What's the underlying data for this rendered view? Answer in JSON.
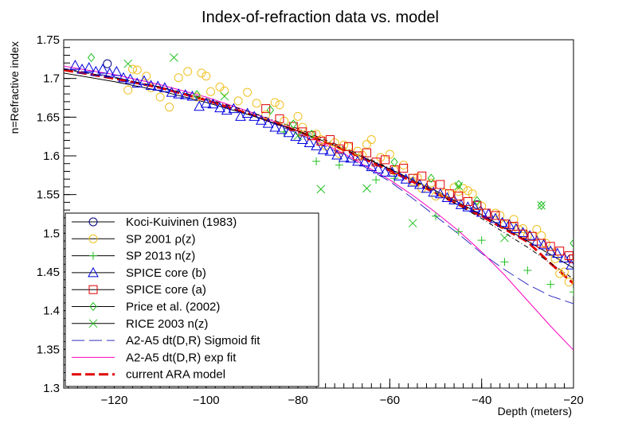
{
  "chart_data": {
    "type": "scatter",
    "title": "Index-of-refraction data vs. model",
    "xlabel": "Depth (meters)",
    "ylabel": "n=Refractive index",
    "xlim": [
      -131,
      -20
    ],
    "ylim": [
      1.3,
      1.75
    ],
    "x_ticks": [
      -120,
      -100,
      -80,
      -60,
      -40,
      -20
    ],
    "x_tick_labels": [
      "−120",
      "−100",
      "−80",
      "−60",
      "−40",
      "−20"
    ],
    "y_ticks": [
      1.3,
      1.35,
      1.4,
      1.45,
      1.5,
      1.55,
      1.6,
      1.65,
      1.7,
      1.75
    ],
    "y_tick_labels": [
      "1.3",
      "1.35",
      "1.4",
      "1.45",
      "1.5",
      "1.55",
      "1.6",
      "1.65",
      "1.7",
      "1.75"
    ],
    "legend_position": "bottom-left",
    "series": [
      {
        "name": "Koci-Kuivinen (1983)",
        "kind": "points",
        "marker": "circle",
        "color": "#000080",
        "x": [
          -121.5,
          -41,
          -20.5
        ],
        "y": [
          1.719,
          1.537,
          1.467
        ]
      },
      {
        "name": "SP 2001 ρ(z)",
        "kind": "points",
        "marker": "circle",
        "color": "#f0c020",
        "x": [
          -117,
          -116,
          -115,
          -113,
          -112,
          -110,
          -108,
          -106,
          -104,
          -102,
          -101,
          -100,
          -99,
          -97,
          -96,
          -93,
          -91,
          -89,
          -87,
          -85,
          -84,
          -83,
          -80,
          -79,
          -76,
          -75,
          -74,
          -72,
          -71,
          -70,
          -69,
          -67,
          -66,
          -65,
          -64,
          -62,
          -60,
          -59,
          -57,
          -55,
          -54,
          -53,
          -51,
          -50,
          -48,
          -46,
          -45,
          -44,
          -43,
          -42,
          -40,
          -37,
          -36,
          -35,
          -33,
          -32,
          -31,
          -30,
          -28,
          -27,
          -26,
          -25,
          -24,
          -23,
          -22,
          -21
        ],
        "y": [
          1.685,
          1.712,
          1.711,
          1.703,
          1.688,
          1.676,
          1.663,
          1.701,
          1.709,
          1.676,
          1.707,
          1.703,
          1.683,
          1.689,
          1.684,
          1.671,
          1.682,
          1.668,
          1.653,
          1.669,
          1.666,
          1.645,
          1.651,
          1.637,
          1.628,
          1.621,
          1.613,
          1.617,
          1.603,
          1.614,
          1.612,
          1.606,
          1.601,
          1.615,
          1.621,
          1.598,
          1.602,
          1.581,
          1.588,
          1.567,
          1.572,
          1.558,
          1.565,
          1.548,
          1.552,
          1.559,
          1.554,
          1.558,
          1.555,
          1.551,
          1.535,
          1.526,
          1.523,
          1.511,
          1.518,
          1.505,
          1.506,
          1.497,
          1.505,
          1.497,
          1.487,
          1.476,
          1.467,
          1.448,
          1.45,
          1.437
        ]
      },
      {
        "name": "SP 2013 n(z)",
        "kind": "points",
        "marker": "plus",
        "color": "#20c020",
        "x": [
          -83,
          -76,
          -71,
          -63,
          -59,
          -50,
          -45,
          -40,
          -35,
          -30,
          -25,
          -20
        ],
        "y": [
          1.631,
          1.593,
          1.588,
          1.569,
          1.571,
          1.522,
          1.502,
          1.491,
          1.463,
          1.452,
          1.434,
          1.424
        ]
      },
      {
        "name": "SPICE core (b)",
        "kind": "points",
        "marker": "triangle",
        "color": "#0000e0",
        "x": [
          -128.5,
          -127,
          -125.5,
          -124,
          -122.5,
          -121,
          -119.5,
          -118,
          -116.5,
          -115,
          -113.5,
          -112,
          -110.5,
          -109,
          -107.5,
          -106,
          -104.5,
          -103,
          -101.5,
          -100,
          -98.5,
          -97,
          -95.5,
          -94,
          -92.5,
          -91,
          -89.5,
          -88,
          -86.5,
          -85,
          -83.5,
          -82,
          -80.5,
          -79,
          -77.5,
          -76,
          -74.5,
          -73,
          -71.5,
          -70,
          -68.5,
          -67,
          -65.5,
          -64,
          -62.5,
          -61,
          -59.5,
          -58,
          -56.5,
          -55,
          -53.5,
          -52,
          -50.5,
          -49,
          -47.5,
          -46,
          -44.5,
          -43,
          -41.5,
          -40,
          -38.5,
          -37,
          -35.5,
          -34,
          -32.5,
          -31,
          -29.5,
          -28,
          -26.5,
          -25,
          -23.5,
          -22,
          -20.5
        ],
        "y": [
          1.717,
          1.712,
          1.714,
          1.709,
          1.712,
          1.707,
          1.709,
          1.701,
          1.699,
          1.694,
          1.697,
          1.691,
          1.69,
          1.688,
          1.682,
          1.68,
          1.679,
          1.677,
          1.664,
          1.668,
          1.667,
          1.662,
          1.659,
          1.661,
          1.651,
          1.655,
          1.651,
          1.646,
          1.642,
          1.637,
          1.634,
          1.63,
          1.625,
          1.621,
          1.617,
          1.613,
          1.608,
          1.606,
          1.601,
          1.598,
          1.597,
          1.593,
          1.592,
          1.586,
          1.583,
          1.579,
          1.579,
          1.574,
          1.57,
          1.566,
          1.563,
          1.558,
          1.553,
          1.551,
          1.546,
          1.543,
          1.537,
          1.534,
          1.533,
          1.527,
          1.525,
          1.519,
          1.514,
          1.511,
          1.506,
          1.501,
          1.497,
          1.49,
          1.485,
          1.477,
          1.474,
          1.468,
          1.459
        ]
      },
      {
        "name": "SPICE core (a)",
        "kind": "points",
        "marker": "square",
        "color": "#e00000",
        "x": [
          -87,
          -84,
          -81,
          -79,
          -77,
          -75,
          -73,
          -71,
          -69,
          -67,
          -65,
          -63,
          -61,
          -59,
          -57,
          -55,
          -53,
          -51,
          -49,
          -47,
          -45,
          -43,
          -41,
          -39,
          -37,
          -35,
          -33,
          -31,
          -29,
          -27,
          -25,
          -23,
          -21,
          -20
        ],
        "y": [
          1.661,
          1.648,
          1.638,
          1.631,
          1.626,
          1.619,
          1.621,
          1.609,
          1.612,
          1.6,
          1.604,
          1.592,
          1.595,
          1.582,
          1.584,
          1.571,
          1.574,
          1.562,
          1.563,
          1.551,
          1.548,
          1.541,
          1.536,
          1.526,
          1.523,
          1.512,
          1.509,
          1.499,
          1.496,
          1.487,
          1.483,
          1.477,
          1.471,
          1.467
        ]
      },
      {
        "name": "Price et al. (2002)",
        "kind": "points",
        "marker": "diamond",
        "color": "#20c020",
        "x": [
          -125,
          -102,
          -86,
          -81,
          -77,
          -59,
          -51,
          -45,
          -41,
          -27,
          -20
        ],
        "y": [
          1.727,
          1.679,
          1.659,
          1.641,
          1.628,
          1.592,
          1.571,
          1.563,
          1.542,
          1.536,
          1.487
        ]
      },
      {
        "name": "RICE 2003 n(z)",
        "kind": "points",
        "marker": "x",
        "color": "#20c020",
        "x": [
          -117,
          -107,
          -96,
          -80,
          -75,
          -65,
          -55,
          -45,
          -35,
          -27
        ],
        "y": [
          1.719,
          1.727,
          1.677,
          1.626,
          1.557,
          1.558,
          1.513,
          1.561,
          1.494,
          1.536
        ]
      },
      {
        "name": "A2-A5 dt(D,R) Sigmoid fit",
        "kind": "line",
        "style": "longdash",
        "color": "#3030c0",
        "x": [
          -131,
          -120,
          -110,
          -100,
          -90,
          -80,
          -70,
          -60,
          -55,
          -50,
          -45,
          -40,
          -35,
          -30,
          -25,
          -20
        ],
        "y": [
          1.713,
          1.702,
          1.688,
          1.672,
          1.653,
          1.629,
          1.601,
          1.567,
          1.545,
          1.522,
          1.499,
          1.474,
          1.453,
          1.434,
          1.419,
          1.409
        ]
      },
      {
        "name": "A2-A5 dt(D,R) exp fit",
        "kind": "line",
        "style": "solid",
        "color": "#ff00c0",
        "x": [
          -131,
          -120,
          -110,
          -100,
          -90,
          -80,
          -70,
          -60,
          -55,
          -50,
          -45,
          -40,
          -35,
          -30,
          -25,
          -20
        ],
        "y": [
          1.716,
          1.705,
          1.692,
          1.676,
          1.656,
          1.632,
          1.603,
          1.569,
          1.549,
          1.527,
          1.503,
          1.476,
          1.446,
          1.413,
          1.38,
          1.349
        ]
      },
      {
        "name": "current ARA model",
        "kind": "line",
        "style": "dash",
        "color": "#e00000",
        "x": [
          -131,
          -120,
          -110,
          -100,
          -90,
          -80,
          -70,
          -60,
          -50,
          -40,
          -30,
          -25,
          -20
        ],
        "y": [
          1.711,
          1.7,
          1.688,
          1.672,
          1.653,
          1.632,
          1.608,
          1.581,
          1.552,
          1.522,
          1.489,
          1.461,
          1.435
        ]
      },
      {
        "name": "",
        "kind": "line",
        "style": "solid",
        "color": "#000000",
        "x": [
          -131,
          -120,
          -110,
          -100,
          -90,
          -80,
          -70,
          -60,
          -50,
          -40,
          -30,
          -20
        ],
        "y": [
          1.707,
          1.696,
          1.684,
          1.669,
          1.652,
          1.632,
          1.609,
          1.583,
          1.555,
          1.524,
          1.49,
          1.455
        ]
      },
      {
        "name": "",
        "kind": "line",
        "style": "dashdot",
        "color": "#000000",
        "x": [
          -131,
          -120,
          -110,
          -100,
          -90,
          -80,
          -70,
          -60,
          -50,
          -40,
          -30,
          -20
        ],
        "y": [
          1.712,
          1.701,
          1.689,
          1.674,
          1.656,
          1.635,
          1.611,
          1.584,
          1.553,
          1.519,
          1.482,
          1.441
        ]
      }
    ]
  }
}
